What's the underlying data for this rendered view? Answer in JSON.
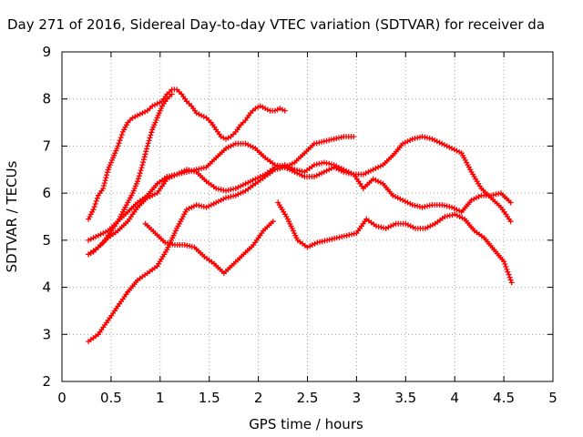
{
  "chart_data": {
    "type": "scatter",
    "title": "Day 271 of 2016, Sidereal Day-to-day VTEC variation (SDTVAR) for receiver da",
    "xlabel": "GPS time / hours",
    "ylabel": "SDTVAR / TECUs",
    "xlim": [
      0,
      5
    ],
    "ylim": [
      2,
      9
    ],
    "x_ticks": [
      0,
      0.5,
      1,
      1.5,
      2,
      2.5,
      3,
      3.5,
      4,
      4.5,
      5
    ],
    "x_tick_labels": [
      "0",
      "0.5",
      "1",
      "1.5",
      "2",
      "2.5",
      "3",
      "3.5",
      "4",
      "4.5",
      "5"
    ],
    "y_ticks": [
      2,
      3,
      4,
      5,
      6,
      7,
      8,
      9
    ],
    "y_tick_labels": [
      "2",
      "3",
      "4",
      "5",
      "6",
      "7",
      "8",
      "9"
    ],
    "grid": true,
    "marker": "+",
    "color": "#ff0000",
    "series": [
      {
        "x": [
          0.27,
          0.32,
          0.37,
          0.42,
          0.47,
          0.52,
          0.57,
          0.62,
          0.67,
          0.72,
          0.77,
          0.82,
          0.87,
          0.92,
          0.97,
          1.02,
          1.07,
          1.12,
          1.17,
          1.22,
          1.27,
          1.32,
          1.37,
          1.42,
          1.47,
          1.52,
          1.57,
          1.62,
          1.67,
          1.72,
          1.77,
          1.82,
          1.87,
          1.92,
          1.97,
          2.02,
          2.07,
          2.12,
          2.17,
          2.22,
          2.27
        ],
        "y": [
          5.45,
          5.65,
          5.95,
          6.1,
          6.5,
          6.75,
          7.0,
          7.3,
          7.5,
          7.6,
          7.65,
          7.7,
          7.75,
          7.85,
          7.9,
          7.95,
          8.1,
          8.2,
          8.2,
          8.1,
          7.95,
          7.85,
          7.7,
          7.65,
          7.6,
          7.5,
          7.35,
          7.2,
          7.15,
          7.2,
          7.3,
          7.45,
          7.55,
          7.7,
          7.8,
          7.85,
          7.8,
          7.75,
          7.75,
          7.8,
          7.75
        ]
      },
      {
        "x": [
          0.27,
          0.32,
          0.37,
          0.42,
          0.47,
          0.52,
          0.57,
          0.62,
          0.67,
          0.72,
          0.77,
          0.82,
          0.87,
          0.92,
          0.97,
          1.02,
          1.07,
          1.12
        ],
        "y": [
          4.7,
          4.75,
          4.85,
          4.95,
          5.1,
          5.25,
          5.4,
          5.6,
          5.8,
          6.0,
          6.25,
          6.6,
          7.0,
          7.35,
          7.6,
          7.85,
          8.0,
          8.1
        ]
      },
      {
        "x": [
          0.27,
          0.37,
          0.47,
          0.57,
          0.67,
          0.77,
          0.87,
          0.97,
          1.07,
          1.17,
          1.27,
          1.37,
          1.47,
          1.57,
          1.67,
          1.77,
          1.87,
          1.97,
          2.07,
          2.17,
          2.27,
          2.37,
          2.47,
          2.57,
          2.67,
          2.77,
          2.87,
          2.97,
          3.07,
          3.17,
          3.27,
          3.37,
          3.47,
          3.57,
          3.67,
          3.77,
          3.87,
          3.97,
          4.07,
          4.17,
          4.27,
          4.37,
          4.47,
          4.57
        ],
        "y": [
          5.0,
          5.1,
          5.2,
          5.4,
          5.6,
          5.8,
          5.95,
          6.2,
          6.35,
          6.4,
          6.5,
          6.45,
          6.25,
          6.1,
          6.05,
          6.1,
          6.2,
          6.3,
          6.4,
          6.55,
          6.6,
          6.5,
          6.45,
          6.6,
          6.65,
          6.6,
          6.5,
          6.4,
          6.1,
          6.3,
          6.2,
          5.95,
          5.85,
          5.75,
          5.7,
          5.75,
          5.75,
          5.7,
          5.6,
          5.85,
          5.95,
          5.95,
          6.0,
          5.8
        ]
      },
      {
        "x": [
          0.27,
          0.37,
          0.47,
          0.57,
          0.67,
          0.77,
          0.87,
          0.97,
          1.07,
          1.17,
          1.27,
          1.37,
          1.47,
          1.57,
          1.67,
          1.77,
          1.87,
          1.97,
          2.07,
          2.17,
          2.27,
          2.37,
          2.47,
          2.57,
          2.67,
          2.77,
          2.87,
          2.97
        ],
        "y": [
          4.7,
          4.85,
          5.05,
          5.2,
          5.4,
          5.7,
          5.9,
          6.0,
          6.3,
          6.4,
          6.45,
          6.5,
          6.55,
          6.75,
          6.95,
          7.05,
          7.05,
          6.95,
          6.75,
          6.6,
          6.55,
          6.65,
          6.85,
          7.05,
          7.1,
          7.15,
          7.2,
          7.2
        ]
      },
      {
        "x": [
          0.27,
          0.37,
          0.47,
          0.57,
          0.67,
          0.77,
          0.87,
          0.97,
          1.07,
          1.17,
          1.27,
          1.37,
          1.47,
          1.57,
          1.67,
          1.77,
          1.87,
          1.97,
          2.07,
          2.17,
          2.27,
          2.37,
          2.47,
          2.57,
          2.67,
          2.77,
          2.87,
          2.97,
          3.07,
          3.17,
          3.27,
          3.37,
          3.47,
          3.57,
          3.67,
          3.77,
          3.87,
          3.97,
          4.07,
          4.17,
          4.27,
          4.37,
          4.47,
          4.57
        ],
        "y": [
          2.85,
          3.0,
          3.3,
          3.6,
          3.9,
          4.15,
          4.3,
          4.45,
          4.8,
          5.25,
          5.65,
          5.75,
          5.7,
          5.8,
          5.9,
          5.95,
          6.05,
          6.2,
          6.35,
          6.5,
          6.55,
          6.45,
          6.35,
          6.35,
          6.45,
          6.55,
          6.45,
          6.4,
          6.4,
          6.5,
          6.6,
          6.8,
          7.05,
          7.15,
          7.2,
          7.15,
          7.05,
          6.95,
          6.85,
          6.45,
          6.1,
          5.9,
          5.7,
          5.4
        ]
      },
      {
        "x": [
          0.85,
          0.95,
          1.05,
          1.15,
          1.25,
          1.35,
          1.45,
          1.55,
          1.65,
          1.75,
          1.85,
          1.95,
          2.05,
          2.15
        ],
        "y": [
          5.35,
          5.15,
          4.95,
          4.9,
          4.9,
          4.85,
          4.65,
          4.5,
          4.3,
          4.5,
          4.7,
          4.9,
          5.2,
          5.4
        ]
      },
      {
        "x": [
          2.2,
          2.3,
          2.4,
          2.5,
          2.6,
          2.7,
          2.8,
          2.9,
          3.0,
          3.1,
          3.2,
          3.3,
          3.4,
          3.5,
          3.6,
          3.7,
          3.8,
          3.9,
          4.0,
          4.1,
          4.2,
          4.3,
          4.4,
          4.5,
          4.58
        ],
        "y": [
          5.8,
          5.45,
          5.0,
          4.85,
          4.95,
          5.0,
          5.05,
          5.1,
          5.15,
          5.45,
          5.3,
          5.25,
          5.35,
          5.35,
          5.25,
          5.25,
          5.35,
          5.5,
          5.55,
          5.45,
          5.2,
          5.05,
          4.8,
          4.55,
          4.1
        ]
      }
    ]
  }
}
